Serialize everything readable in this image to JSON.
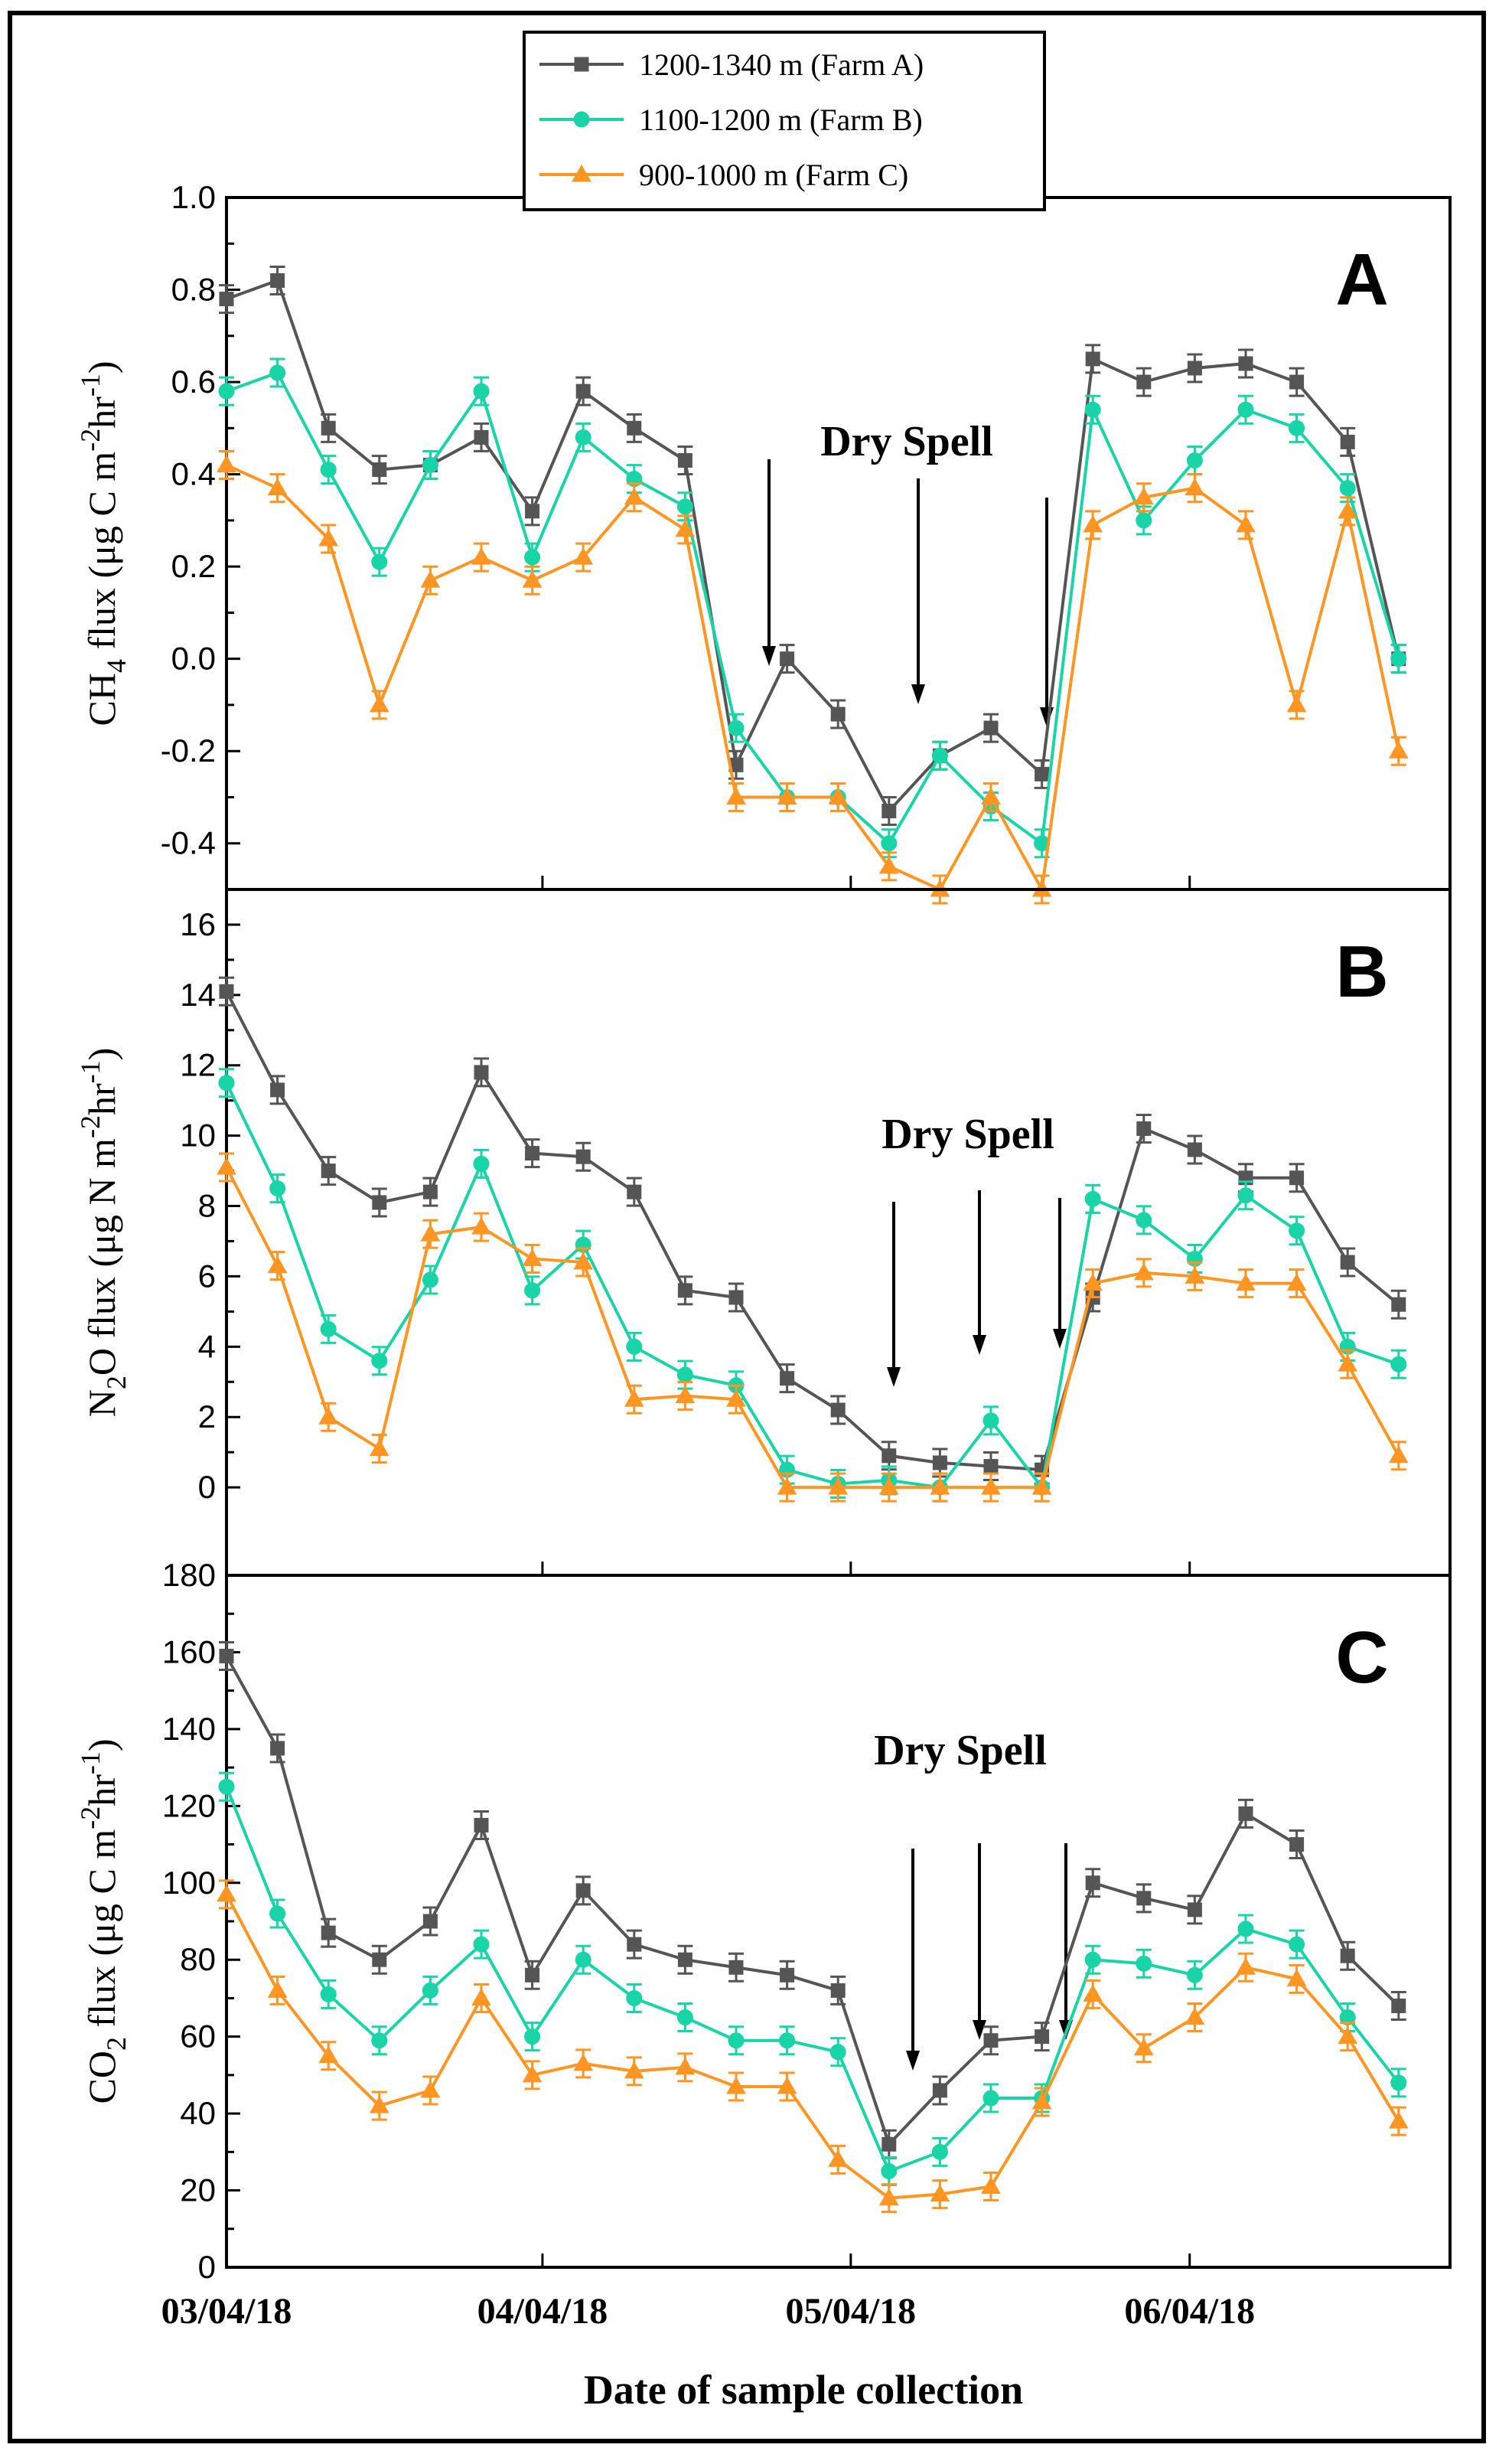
{
  "chart_data": {
    "type": "line",
    "xlabel": "Date of sample collection",
    "x_tick_labels": [
      "03/04/18",
      "04/04/18",
      "05/04/18",
      "06/04/18"
    ],
    "legend": [
      {
        "name": "1200-1340 m (Farm A)",
        "color": "#555555",
        "marker": "square"
      },
      {
        "name": "1100-1200 m (Farm B)",
        "color": "#19d4a6",
        "marker": "circle"
      },
      {
        "name": "900-1000 m (Farm C)",
        "color": "#ff9522",
        "marker": "triangle"
      }
    ],
    "panels": [
      {
        "letter": "A",
        "ylabel_parts": [
          "CH",
          "4",
          " flux (μg C m",
          "-2",
          "hr",
          "-1",
          ")"
        ],
        "ylim": [
          -0.5,
          1.0
        ],
        "yticks": [
          -0.4,
          -0.2,
          0.0,
          0.2,
          0.4,
          0.6,
          0.8,
          1.0
        ],
        "ytick_labels": [
          "-0.4",
          "-0.2",
          "0.0",
          "0.2",
          "0.4",
          "0.6",
          "0.8",
          "1.0"
        ],
        "dry_spell_label": "Dry Spell",
        "series": [
          {
            "name": "1200-1340 m (Farm A)",
            "x": [
              0,
              1,
              2,
              3,
              4,
              5,
              6,
              7,
              8,
              9,
              10,
              11,
              12,
              13,
              14,
              15,
              16,
              17,
              18,
              19,
              20,
              21,
              22,
              23
            ],
            "values": [
              0.78,
              0.82,
              0.5,
              0.41,
              0.42,
              0.48,
              0.32,
              0.58,
              0.5,
              0.43,
              -0.23,
              0.0,
              -0.12,
              -0.33,
              -0.21,
              -0.15,
              -0.25,
              0.65,
              0.6,
              0.63,
              0.64,
              0.6,
              0.47,
              0.0
            ]
          },
          {
            "name": "1100-1200 m (Farm B)",
            "x": [
              0,
              1,
              2,
              3,
              4,
              5,
              6,
              7,
              8,
              9,
              10,
              11,
              12,
              13,
              14,
              15,
              16,
              17,
              18,
              19,
              20,
              21,
              22,
              23
            ],
            "values": [
              0.58,
              0.62,
              0.41,
              0.21,
              0.42,
              0.58,
              0.22,
              0.48,
              0.39,
              0.33,
              -0.15,
              -0.3,
              -0.3,
              -0.4,
              -0.21,
              -0.32,
              -0.4,
              0.54,
              0.3,
              0.43,
              0.54,
              0.5,
              0.37,
              0.0
            ]
          },
          {
            "name": "900-1000 m (Farm C)",
            "x": [
              0,
              1,
              2,
              3,
              4,
              5,
              6,
              7,
              8,
              9,
              10,
              11,
              12,
              13,
              14,
              15,
              16,
              17,
              18,
              19,
              20,
              21,
              22,
              23
            ],
            "values": [
              0.42,
              0.37,
              0.26,
              -0.1,
              0.17,
              0.22,
              0.17,
              0.22,
              0.35,
              0.28,
              -0.3,
              -0.3,
              -0.3,
              -0.45,
              -0.5,
              -0.3,
              -0.5,
              0.29,
              0.35,
              0.37,
              0.29,
              -0.1,
              0.32,
              -0.2
            ]
          }
        ]
      },
      {
        "letter": "B",
        "ylabel_parts": [
          "N",
          "2",
          "O flux (μg N m",
          "-2",
          "hr",
          "-1",
          ")"
        ],
        "ylim": [
          -2.5,
          17.0
        ],
        "yticks": [
          0,
          2,
          4,
          6,
          8,
          10,
          12,
          14,
          16
        ],
        "ytick_labels": [
          "0",
          "2",
          "4",
          "6",
          "8",
          "10",
          "12",
          "14",
          "16"
        ],
        "dry_spell_label": "Dry Spell",
        "series": [
          {
            "name": "1200-1340 m (Farm A)",
            "x": [
              0,
              1,
              2,
              3,
              4,
              5,
              6,
              7,
              8,
              9,
              10,
              11,
              12,
              13,
              14,
              15,
              16,
              17,
              18,
              19,
              20,
              21,
              22,
              23
            ],
            "values": [
              14.1,
              11.3,
              9.0,
              8.1,
              8.4,
              11.8,
              9.5,
              9.4,
              8.4,
              5.6,
              5.4,
              3.1,
              2.2,
              0.9,
              0.7,
              0.6,
              0.5,
              5.4,
              10.2,
              9.6,
              8.8,
              8.8,
              6.4,
              5.2
            ]
          },
          {
            "name": "1100-1200 m (Farm B)",
            "x": [
              0,
              1,
              2,
              3,
              4,
              5,
              6,
              7,
              8,
              9,
              10,
              11,
              12,
              13,
              14,
              15,
              16,
              17,
              18,
              19,
              20,
              21,
              22,
              23
            ],
            "values": [
              11.5,
              8.5,
              4.5,
              3.6,
              5.9,
              9.2,
              5.6,
              6.9,
              4.0,
              3.2,
              2.9,
              0.5,
              0.1,
              0.2,
              0.0,
              1.9,
              0.0,
              8.2,
              7.6,
              6.5,
              8.3,
              7.3,
              4.0,
              3.5
            ]
          },
          {
            "name": "900-1000 m (Farm C)",
            "x": [
              0,
              1,
              2,
              3,
              4,
              5,
              6,
              7,
              8,
              9,
              10,
              11,
              12,
              13,
              14,
              15,
              16,
              17,
              18,
              19,
              20,
              21,
              22,
              23
            ],
            "values": [
              9.1,
              6.3,
              2.0,
              1.1,
              7.2,
              7.4,
              6.5,
              6.4,
              2.5,
              2.6,
              2.5,
              0.0,
              0.0,
              0.0,
              0.0,
              0.0,
              0.0,
              5.8,
              6.1,
              6.0,
              5.8,
              5.8,
              3.5,
              0.9
            ]
          }
        ]
      },
      {
        "letter": "C",
        "ylabel_parts": [
          "CO",
          "2",
          " flux (μg C m",
          "-2",
          "hr",
          "-1",
          ")"
        ],
        "ylim": [
          0,
          180
        ],
        "yticks": [
          0,
          20,
          40,
          60,
          80,
          100,
          120,
          140,
          160,
          180
        ],
        "ytick_labels": [
          "0",
          "20",
          "40",
          "60",
          "80",
          "100",
          "120",
          "140",
          "160",
          "180"
        ],
        "dry_spell_label": "Dry Spell",
        "series": [
          {
            "name": "1200-1340 m (Farm A)",
            "x": [
              0,
              1,
              2,
              3,
              4,
              5,
              6,
              7,
              8,
              9,
              10,
              11,
              12,
              13,
              14,
              15,
              16,
              17,
              18,
              19,
              20,
              21,
              22,
              23
            ],
            "values": [
              159,
              135,
              87,
              80,
              90,
              115,
              76,
              98,
              84,
              80,
              78,
              76,
              72,
              32,
              46,
              59,
              60,
              100,
              96,
              93,
              118,
              110,
              81,
              68
            ]
          },
          {
            "name": "1100-1200 m (Farm B)",
            "x": [
              0,
              1,
              2,
              3,
              4,
              5,
              6,
              7,
              8,
              9,
              10,
              11,
              12,
              13,
              14,
              15,
              16,
              17,
              18,
              19,
              20,
              21,
              22,
              23
            ],
            "values": [
              125,
              92,
              71,
              59,
              72,
              84,
              60,
              80,
              70,
              65,
              59,
              59,
              56,
              25,
              30,
              44,
              44,
              80,
              79,
              76,
              88,
              84,
              65,
              48
            ]
          },
          {
            "name": "900-1000 m (Farm C)",
            "x": [
              0,
              1,
              2,
              3,
              4,
              5,
              6,
              7,
              8,
              9,
              10,
              11,
              12,
              13,
              14,
              15,
              16,
              17,
              18,
              19,
              20,
              21,
              22,
              23
            ],
            "values": [
              97,
              72,
              55,
              42,
              46,
              70,
              50,
              53,
              51,
              52,
              47,
              47,
              28,
              18,
              19,
              21,
              43,
              71,
              57,
              65,
              78,
              75,
              60,
              38
            ]
          }
        ]
      }
    ]
  }
}
